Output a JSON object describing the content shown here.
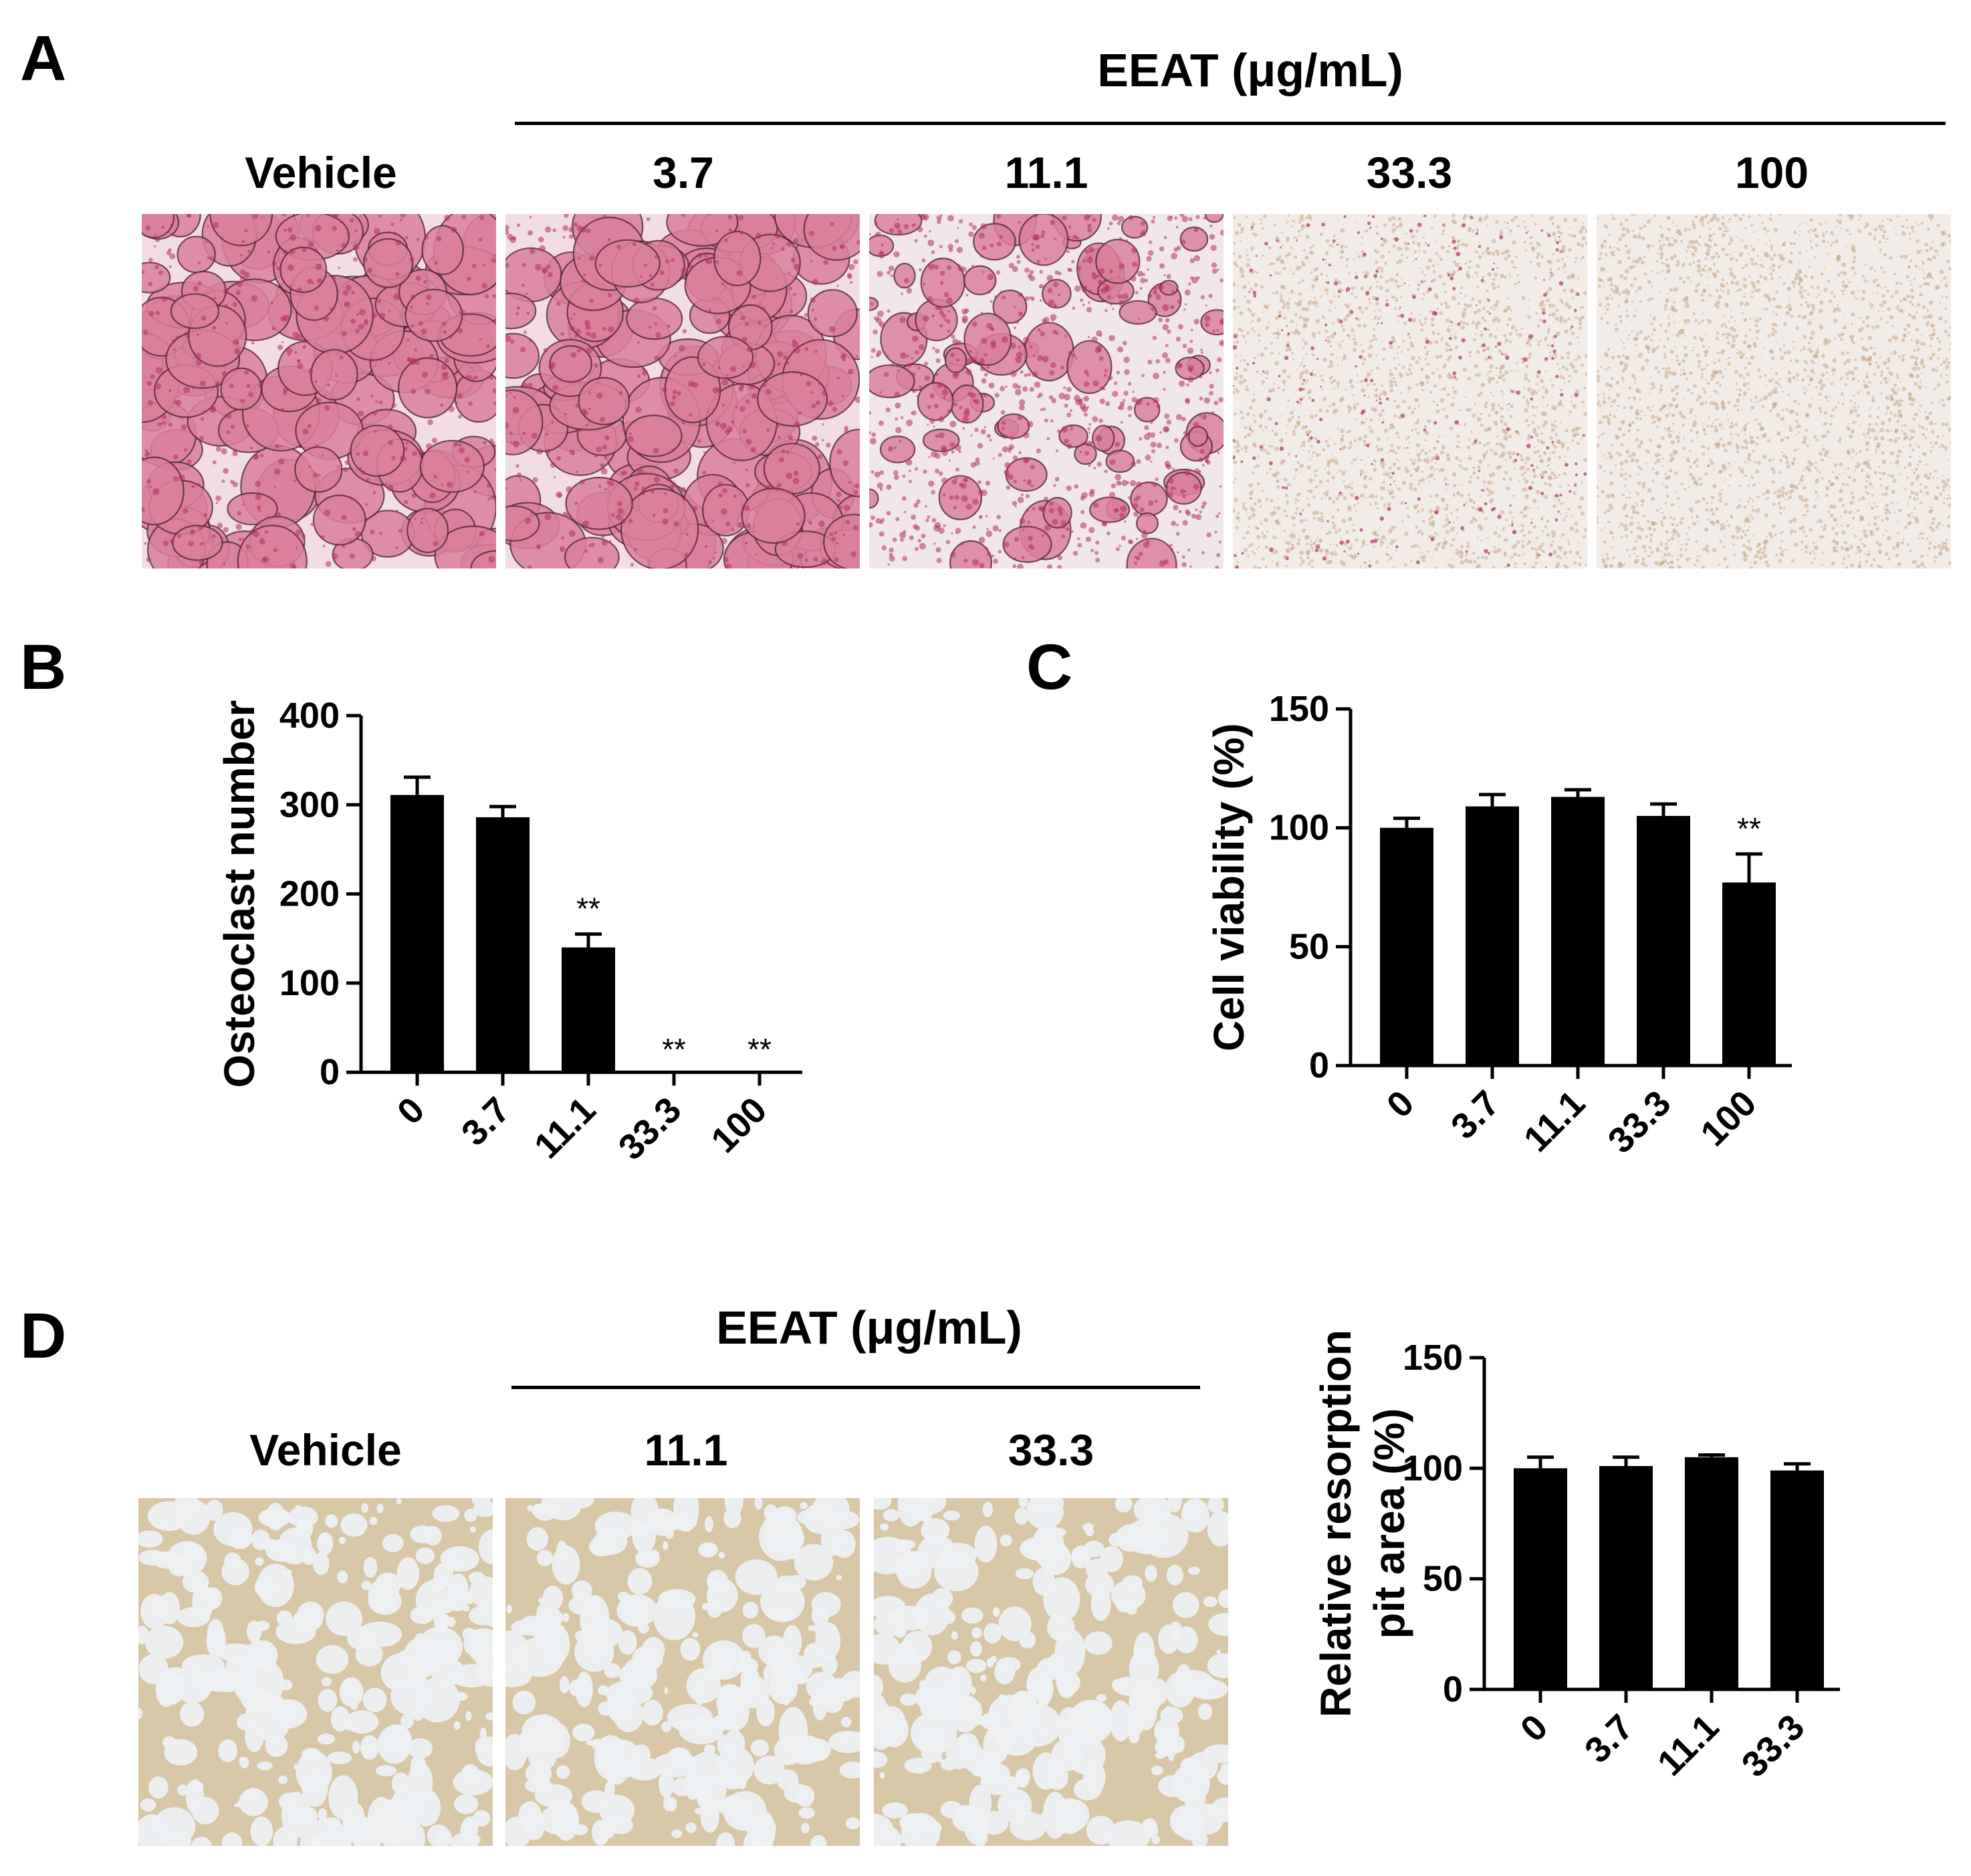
{
  "panels": {
    "a": {
      "letter": "A",
      "treatment_header": "EEAT (μg/mL)",
      "columns": [
        {
          "label": "Vehicle",
          "stain": "heavy"
        },
        {
          "label": "3.7",
          "stain": "heavy"
        },
        {
          "label": "11.1",
          "stain": "medium"
        },
        {
          "label": "33.3",
          "stain": "sparse"
        },
        {
          "label": "100",
          "stain": "none"
        }
      ]
    },
    "b": {
      "letter": "B"
    },
    "c": {
      "letter": "C"
    },
    "d": {
      "letter": "D",
      "treatment_header": "EEAT (μg/mL)",
      "columns": [
        {
          "label": "Vehicle"
        },
        {
          "label": "11.1"
        },
        {
          "label": "33.3"
        }
      ]
    }
  },
  "colors": {
    "stain_pink": "#d9809b",
    "stain_dark": "#b0305e",
    "stain_bg": "#f2dde4",
    "sparse_bg": "#f2ede9",
    "pit_bg": "#d8c7a6",
    "pit_light": "#eef0f2",
    "bar": "#000000"
  },
  "chart_data": [
    {
      "id": "b",
      "type": "bar",
      "ylabel": "Osteoclast number",
      "xlabel": "",
      "categories": [
        "0",
        "3.7",
        "11.1",
        "33.3",
        "100"
      ],
      "values": [
        311,
        286,
        140,
        0,
        0
      ],
      "errors": [
        20,
        12,
        15,
        0,
        0
      ],
      "annotations": [
        "",
        "",
        "**",
        "**",
        "**"
      ],
      "ylim": [
        0,
        400
      ],
      "yticks": [
        "0",
        "100",
        "200",
        "300",
        "400"
      ],
      "grid": false
    },
    {
      "id": "c",
      "type": "bar",
      "ylabel": "Cell viability (%)",
      "xlabel": "",
      "categories": [
        "0",
        "3.7",
        "11.1",
        "33.3",
        "100"
      ],
      "values": [
        100,
        109,
        113,
        105,
        77
      ],
      "errors": [
        4,
        5,
        3,
        5,
        12
      ],
      "annotations": [
        "",
        "",
        "",
        "",
        "**"
      ],
      "ylim": [
        0,
        150
      ],
      "yticks": [
        "0",
        "50",
        "100",
        "150"
      ],
      "grid": false
    },
    {
      "id": "d",
      "type": "bar",
      "ylabel": [
        "Relative resorption",
        "pit area (%)"
      ],
      "xlabel": "",
      "categories": [
        "0",
        "3.7",
        "11.1",
        "33.3"
      ],
      "values": [
        100,
        101,
        105,
        99
      ],
      "errors": [
        5,
        4,
        1,
        3
      ],
      "annotations": [
        "",
        "",
        "",
        ""
      ],
      "ylim": [
        0,
        150
      ],
      "yticks": [
        "0",
        "50",
        "100",
        "150"
      ],
      "grid": false
    }
  ]
}
